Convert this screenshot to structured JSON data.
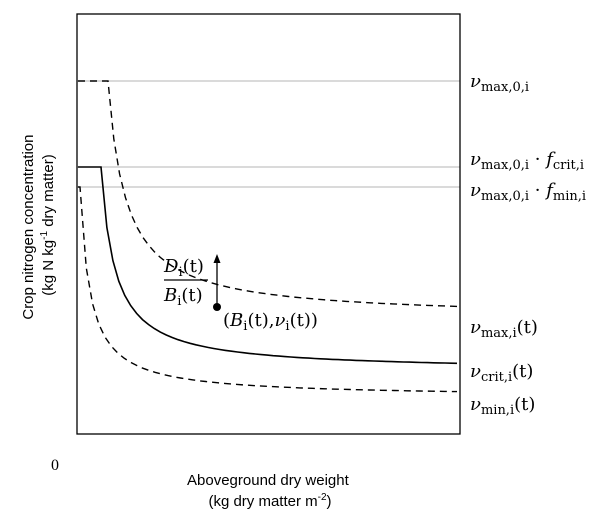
{
  "axes": {
    "y_label_line1": "Crop nitrogen concentration",
    "y_label_line2_prefix": "(kg N kg",
    "y_label_line2_sup": "-1",
    "y_label_line2_suffix": " dry matter)",
    "x_label_line1": "Aboveground dry weight",
    "x_label_line2_prefix": "(kg dry matter m",
    "x_label_line2_sup": "-2",
    "x_label_line2_suffix": ")",
    "origin": "0"
  },
  "levels": {
    "vmax0": {
      "symbol": "ν",
      "sub": "max,0,i"
    },
    "vmax0_fcrit": {
      "symbol": "ν",
      "sub": "max,0,i",
      "dot": " · ",
      "factor": "f",
      "factor_sub": "crit,i"
    },
    "vmax0_fmin": {
      "symbol": "ν",
      "sub": "max,0,i",
      "dot": " · ",
      "factor": "f",
      "factor_sub": "min,i"
    }
  },
  "curves": {
    "vmax": {
      "symbol": "ν",
      "sub": "max,i",
      "arg": "(t)"
    },
    "vcrit": {
      "symbol": "ν",
      "sub": "crit,i",
      "arg": "(t)"
    },
    "vmin": {
      "symbol": "ν",
      "sub": "min,i",
      "arg": "(t)"
    }
  },
  "annotation": {
    "frac_num": "D",
    "frac_num_sub": "i",
    "frac_den": "B",
    "frac_den_sub": "i",
    "arg": "(t)",
    "point_open": "(",
    "point_B": "B",
    "point_B_sub": "i",
    "point_mid": "(t),",
    "point_v": "ν",
    "point_v_sub": "i",
    "point_close": "(t))"
  }
}
